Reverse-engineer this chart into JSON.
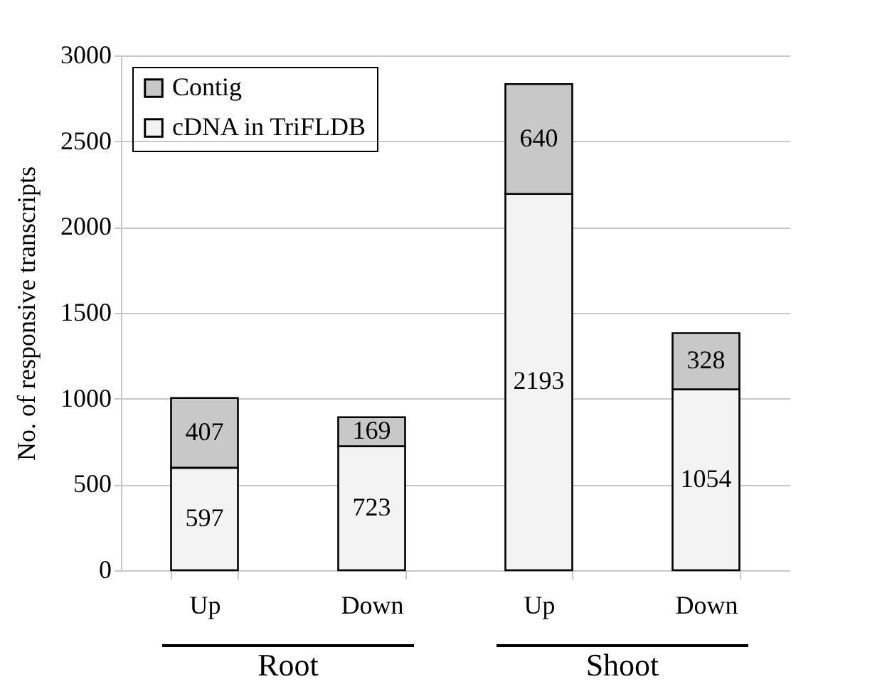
{
  "chart_data": {
    "type": "bar",
    "stacked": true,
    "ylabel": "No. of responsive transcripts",
    "categories": [
      "Up",
      "Down",
      "Up",
      "Down"
    ],
    "series": [
      {
        "name": "cDNA in TriFLDB",
        "color": "#f3f3f3",
        "values": [
          597,
          723,
          2193,
          1054
        ]
      },
      {
        "name": "Contig",
        "color": "#c8c8c8",
        "values": [
          407,
          169,
          640,
          328
        ]
      }
    ],
    "annotations": [
      "Root",
      "Shoot"
    ],
    "ylim": [
      0,
      3000
    ],
    "yticks": [
      0,
      500,
      1000,
      1500,
      2000,
      2500,
      3000
    ],
    "grid": "y",
    "legend": "top left",
    "data_labels": true
  }
}
